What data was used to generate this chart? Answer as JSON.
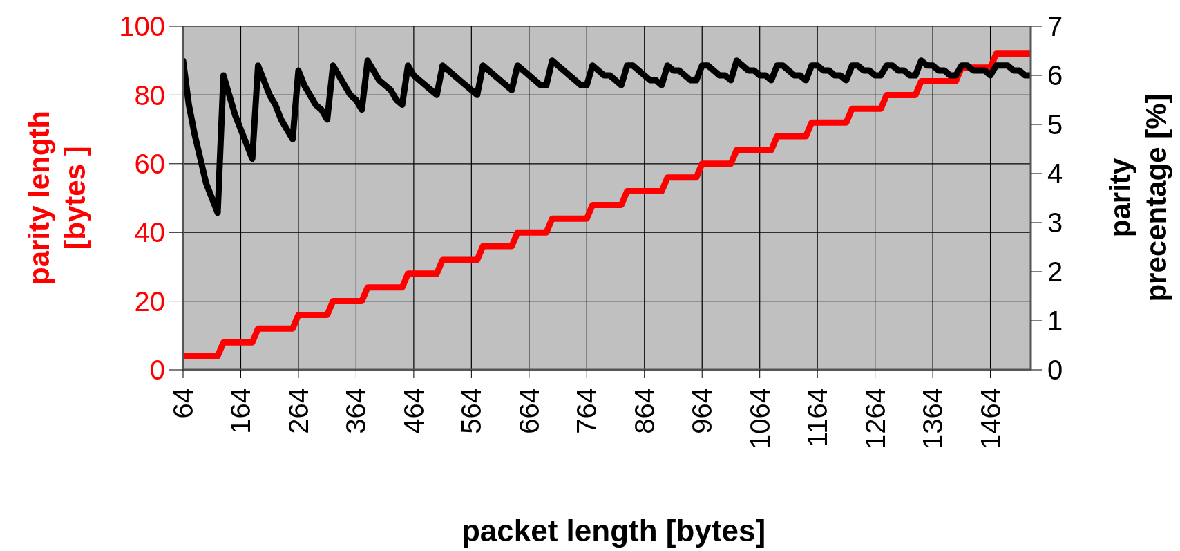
{
  "chart_data": {
    "type": "line",
    "xlabel": "packet length [bytes]",
    "ylabel": "parity length\n[bytes ]",
    "y2label": "parity\nprecentage [%]",
    "categories": [
      "64",
      null,
      null,
      null,
      null,
      null,
      null,
      null,
      null,
      null,
      "164",
      null,
      null,
      null,
      null,
      null,
      null,
      null,
      null,
      null,
      "264",
      null,
      null,
      null,
      null,
      null,
      null,
      null,
      null,
      null,
      "364",
      null,
      null,
      null,
      null,
      null,
      null,
      null,
      null,
      null,
      "464",
      null,
      null,
      null,
      null,
      null,
      null,
      null,
      null,
      null,
      "564",
      null,
      null,
      null,
      null,
      null,
      null,
      null,
      null,
      null,
      "664",
      null,
      null,
      null,
      null,
      null,
      null,
      null,
      null,
      null,
      "764",
      null,
      null,
      null,
      null,
      null,
      null,
      null,
      null,
      null,
      "864",
      null,
      null,
      null,
      null,
      null,
      null,
      null,
      null,
      null,
      "964",
      null,
      null,
      null,
      null,
      null,
      null,
      null,
      null,
      null,
      "1064",
      null,
      null,
      null,
      null,
      null,
      null,
      null,
      null,
      null,
      "1164",
      null,
      null,
      null,
      null,
      null,
      null,
      null,
      null,
      null,
      "1264",
      null,
      null,
      null,
      null,
      null,
      null,
      null,
      null,
      null,
      "1364",
      null,
      null,
      null,
      null,
      null,
      null,
      null,
      null,
      null,
      "1464",
      null,
      null,
      null,
      null,
      null,
      null,
      null
    ],
    "series": [
      {
        "color": "#ff0000",
        "values": [
          4,
          4,
          4,
          4,
          4,
          4,
          4,
          8,
          8,
          8,
          8,
          8,
          8,
          12,
          12,
          12,
          12,
          12,
          12,
          12,
          16,
          16,
          16,
          16,
          16,
          16,
          20,
          20,
          20,
          20,
          20,
          20,
          24,
          24,
          24,
          24,
          24,
          24,
          24,
          28,
          28,
          28,
          28,
          28,
          28,
          32,
          32,
          32,
          32,
          32,
          32,
          32,
          36,
          36,
          36,
          36,
          36,
          36,
          40,
          40,
          40,
          40,
          40,
          40,
          44,
          44,
          44,
          44,
          44,
          44,
          44,
          48,
          48,
          48,
          48,
          48,
          48,
          52,
          52,
          52,
          52,
          52,
          52,
          52,
          56,
          56,
          56,
          56,
          56,
          56,
          60,
          60,
          60,
          60,
          60,
          60,
          64,
          64,
          64,
          64,
          64,
          64,
          64,
          68,
          68,
          68,
          68,
          68,
          68,
          72,
          72,
          72,
          72,
          72,
          72,
          72,
          76,
          76,
          76,
          76,
          76,
          76,
          80,
          80,
          80,
          80,
          80,
          80,
          84,
          84,
          84,
          84,
          84,
          84,
          84,
          88,
          88,
          88,
          88,
          88,
          88,
          92,
          92,
          92,
          92,
          92,
          92,
          92
        ]
      },
      {
        "color": "#000000",
        "axis": "y2",
        "values": [
          6.3,
          5.4,
          4.8,
          4.3,
          3.8,
          3.5,
          3.2,
          6.0,
          5.6,
          5.2,
          4.9,
          4.6,
          4.3,
          6.2,
          5.9,
          5.6,
          5.4,
          5.1,
          4.9,
          4.7,
          6.1,
          5.8,
          5.6,
          5.4,
          5.3,
          5.1,
          6.2,
          6.0,
          5.8,
          5.6,
          5.5,
          5.3,
          6.3,
          6.1,
          5.9,
          5.8,
          5.7,
          5.5,
          5.4,
          6.2,
          6.0,
          5.9,
          5.8,
          5.7,
          5.6,
          6.2,
          6.1,
          6.0,
          5.9,
          5.8,
          5.7,
          5.6,
          6.2,
          6.1,
          6.0,
          5.9,
          5.8,
          5.7,
          6.2,
          6.1,
          6.0,
          5.9,
          5.8,
          5.8,
          6.3,
          6.2,
          6.1,
          6.0,
          5.9,
          5.8,
          5.8,
          6.2,
          6.1,
          6.0,
          6.0,
          5.9,
          5.8,
          6.2,
          6.2,
          6.1,
          6.0,
          5.9,
          5.9,
          5.8,
          6.2,
          6.1,
          6.1,
          6.0,
          5.9,
          5.9,
          6.2,
          6.2,
          6.1,
          6.0,
          6.0,
          5.9,
          6.3,
          6.2,
          6.1,
          6.1,
          6.0,
          6.0,
          5.9,
          6.2,
          6.2,
          6.1,
          6.0,
          6.0,
          5.9,
          6.2,
          6.2,
          6.1,
          6.1,
          6.0,
          6.0,
          5.9,
          6.2,
          6.2,
          6.1,
          6.1,
          6.0,
          6.0,
          6.2,
          6.2,
          6.1,
          6.1,
          6.0,
          6.0,
          6.3,
          6.2,
          6.2,
          6.1,
          6.1,
          6.0,
          6.0,
          6.2,
          6.2,
          6.1,
          6.1,
          6.1,
          6.0,
          6.2,
          6.2,
          6.2,
          6.1,
          6.1,
          6.0,
          6.0
        ]
      }
    ],
    "ylim": [
      0,
      100
    ],
    "yticks": [
      0,
      20,
      40,
      60,
      80,
      100
    ],
    "y2lim": [
      0,
      7
    ],
    "y2ticks": [
      0,
      1,
      2,
      3,
      4,
      5,
      6,
      7
    ],
    "grid": true,
    "marker": "none",
    "line_style": "solid"
  }
}
